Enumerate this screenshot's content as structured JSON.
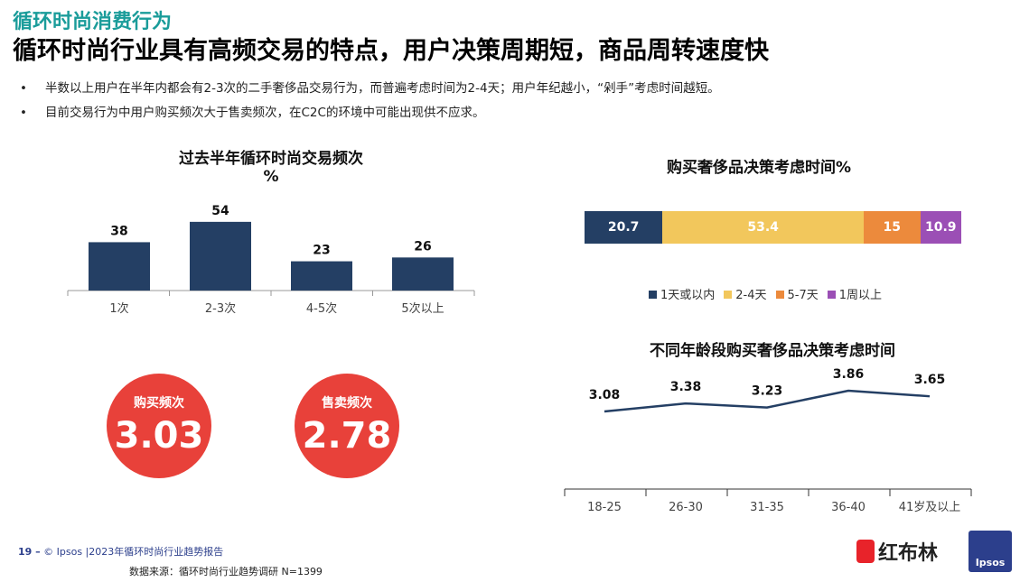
{
  "header": {
    "section": "循环时尚消费行为",
    "title": "循环时尚行业具有高频交易的特点，用户决策周期短，商品周转速度快"
  },
  "bullets": [
    "半数以上用户在半年内都会有2-3次的二手奢侈品交易行为，而普遍考虑时间为2-4天；用户年纪越小，“剁手”考虑时间越短。",
    "目前交易行为中用户购买频次大于售卖频次，在C2C的环境中可能出现供不应求。"
  ],
  "bullet_marker": "•",
  "kpis": [
    {
      "label": "购买频次",
      "value": "3.03"
    },
    {
      "label": "售卖频次",
      "value": "2.78"
    }
  ],
  "colors": {
    "navy": "#243f64",
    "yellow": "#f2c75c",
    "orange": "#ec8a3c",
    "purple": "#9b4fb5",
    "red": "#e8413a",
    "teal": "#1a9c9a"
  },
  "chart_data": [
    {
      "type": "bar",
      "title": "过去半年循环时尚交易频次",
      "title_line2": "%",
      "categories": [
        "1次",
        "2-3次",
        "4-5次",
        "5次以上"
      ],
      "values": [
        38,
        54,
        23,
        26
      ]
    },
    {
      "type": "bar",
      "orientation": "horizontal-stacked",
      "title": "购买奢侈品决策考虑时间%",
      "series": [
        {
          "name": "1天或以内",
          "value": 20.7,
          "color": "#243f64"
        },
        {
          "name": "2-4天",
          "value": 53.4,
          "color": "#f2c75c"
        },
        {
          "name": "5-7天",
          "value": 15,
          "color": "#ec8a3c"
        },
        {
          "name": "1周以上",
          "value": 10.9,
          "color": "#9b4fb5"
        }
      ]
    },
    {
      "type": "line",
      "title": "不同年龄段购买奢侈品决策考虑时间",
      "categories": [
        "18-25",
        "26-30",
        "31-35",
        "36-40",
        "41岁及以上"
      ],
      "values": [
        3.08,
        3.38,
        3.23,
        3.86,
        3.65
      ]
    }
  ],
  "footer": {
    "page": "19 –",
    "copyright": "© Ipsos |2023年循环时尚行业趋势报告",
    "source": "数据来源：循环时尚行业趋势调研 N=1399",
    "logo1": "红布林",
    "logo2": "Ipsos"
  }
}
